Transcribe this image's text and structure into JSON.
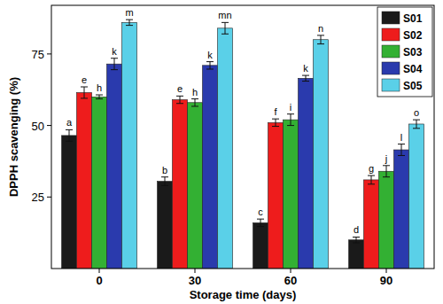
{
  "chart_data": {
    "type": "bar",
    "x_label": "Storage time (days)",
    "y_label": "DPPH scavenging (%)",
    "categories": [
      "0",
      "30",
      "60",
      "90"
    ],
    "ylim": [
      0,
      92
    ],
    "yticks": [
      25,
      50,
      75
    ],
    "grid": false,
    "legend": "top-right",
    "series": [
      {
        "name": "S01",
        "color": "#1a1a1a",
        "values": [
          46.5,
          30.5,
          16,
          10
        ],
        "errors": [
          2,
          1.5,
          1.3,
          1
        ],
        "letters": [
          "a",
          "b",
          "c",
          "d"
        ]
      },
      {
        "name": "S02",
        "color": "#ee1c1c",
        "values": [
          61.5,
          59,
          51,
          31
        ],
        "errors": [
          2,
          1.3,
          1.3,
          1.5
        ],
        "letters": [
          "e",
          "e",
          "f",
          "g"
        ]
      },
      {
        "name": "S03",
        "color": "#33b033",
        "values": [
          60,
          58,
          52,
          34
        ],
        "errors": [
          0.7,
          1.3,
          2,
          2
        ],
        "letters": [
          "h",
          "h",
          "i",
          "j"
        ]
      },
      {
        "name": "S04",
        "color": "#2a3aad",
        "values": [
          71.5,
          71,
          66.5,
          41.5
        ],
        "errors": [
          2,
          1.3,
          1,
          2
        ],
        "letters": [
          "k",
          "k",
          "k",
          "l"
        ]
      },
      {
        "name": "S05",
        "color": "#5ad0e8",
        "values": [
          86,
          84,
          80,
          50.5
        ],
        "errors": [
          1,
          2,
          1.5,
          1.5
        ],
        "letters": [
          "m",
          "mn",
          "n",
          "o"
        ]
      }
    ]
  }
}
